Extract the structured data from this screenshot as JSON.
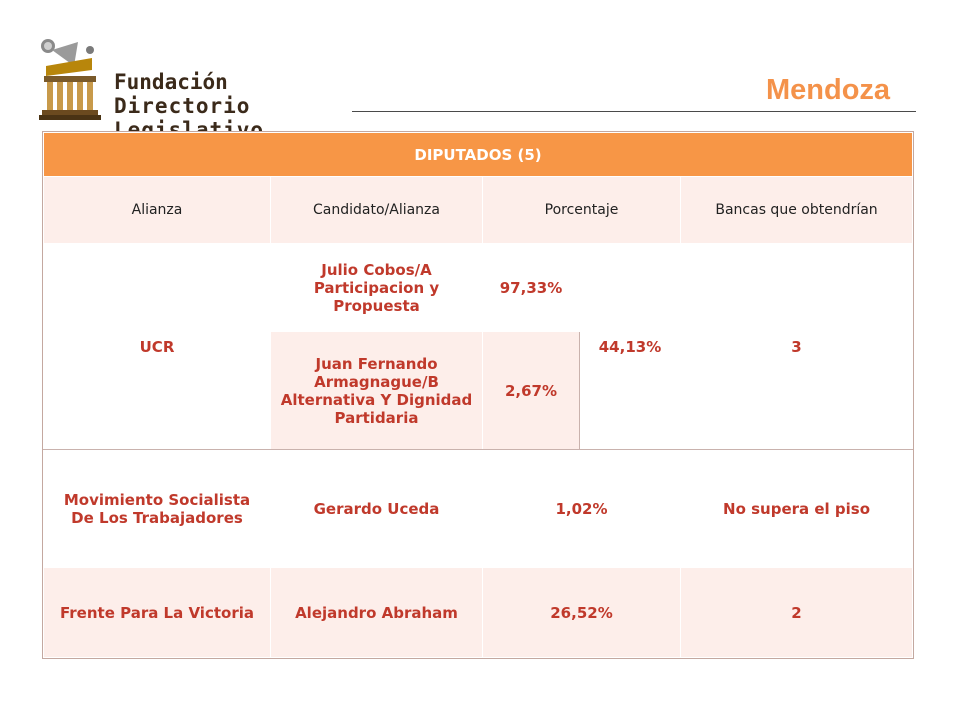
{
  "header": {
    "logo_line1": "Fundación",
    "logo_line2": "Directorio Legislativo",
    "title": "Mendoza"
  },
  "table": {
    "caption": "DIPUTADOS (5)",
    "columns": [
      "Alianza",
      "Candidato/Alianza",
      "Porcentaje",
      "Bancas que obtendrían"
    ],
    "rows": [
      {
        "alianza": "UCR",
        "candidatos": [
          {
            "name": "Julio Cobos/A Participacion y Propuesta",
            "pct": "97,33%"
          },
          {
            "name": "Juan Fernando Armagnague/B Alternativa Y Dignidad Partidaria",
            "pct": "2,67%"
          }
        ],
        "porcentaje": "44,13%",
        "bancas": "3"
      },
      {
        "alianza": "Movimiento Socialista De Los Trabajadores",
        "candidato": "Gerardo Uceda",
        "porcentaje": "1,02%",
        "bancas": "No supera el piso"
      },
      {
        "alianza": "Frente Para La Victoria",
        "candidato": "Alejandro Abraham",
        "porcentaje": "26,52%",
        "bancas": "2"
      }
    ]
  },
  "colors": {
    "accent_orange": "#f79646",
    "title_orange": "#f4924a",
    "row_tint": "#fdeeea",
    "text_red": "#c0392b"
  }
}
